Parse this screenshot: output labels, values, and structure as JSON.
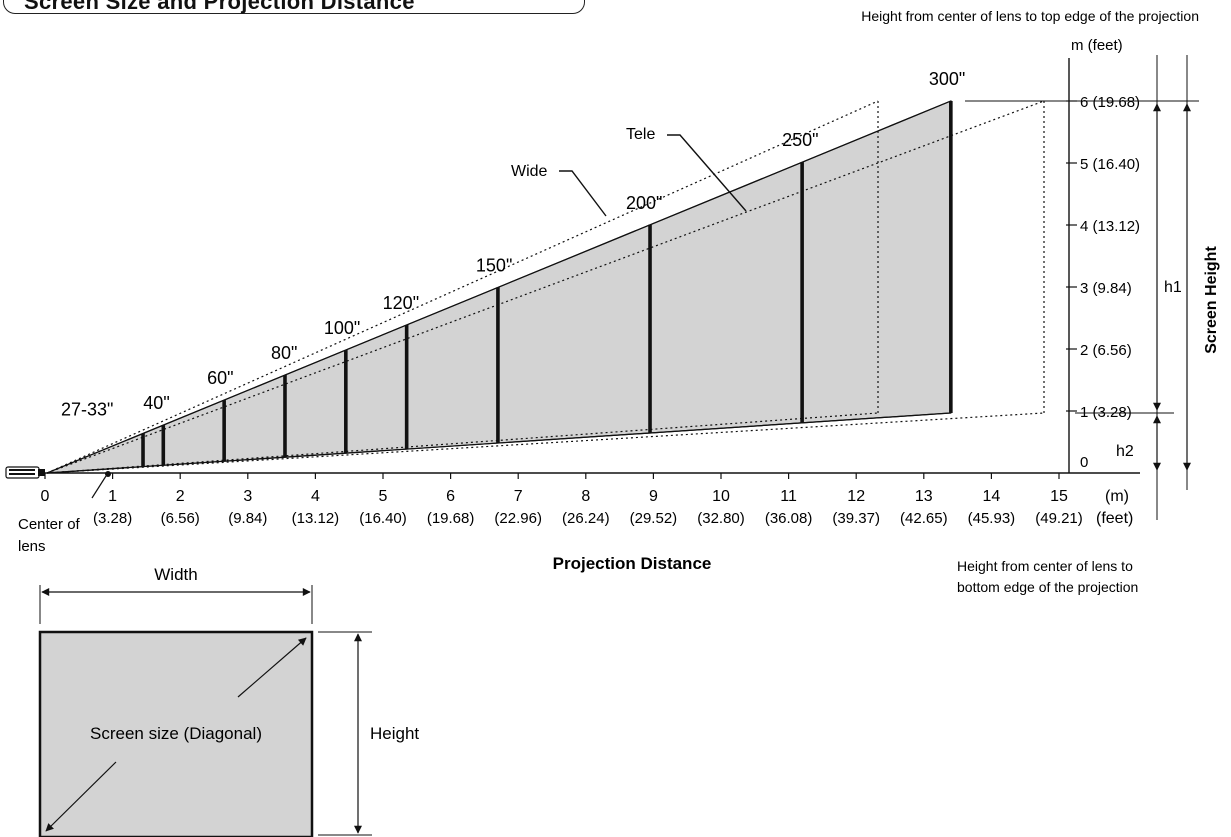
{
  "title": "Screen Size and Projection Distance",
  "top_note": "Height from center of lens to top edge of the projection",
  "bottom_note_lines": [
    "Height from center of lens to",
    "bottom edge of the projection"
  ],
  "x_axis": {
    "title": "Projection Distance",
    "unit_m": "(m)",
    "unit_feet": "(feet)",
    "ticks": [
      {
        "m": "0",
        "ft": ""
      },
      {
        "m": "1",
        "ft": "(3.28)"
      },
      {
        "m": "2",
        "ft": "(6.56)"
      },
      {
        "m": "3",
        "ft": "(9.84)"
      },
      {
        "m": "4",
        "ft": "(13.12)"
      },
      {
        "m": "5",
        "ft": "(16.40)"
      },
      {
        "m": "6",
        "ft": "(19.68)"
      },
      {
        "m": "7",
        "ft": "(22.96)"
      },
      {
        "m": "8",
        "ft": "(26.24)"
      },
      {
        "m": "9",
        "ft": "(29.52)"
      },
      {
        "m": "10",
        "ft": "(32.80)"
      },
      {
        "m": "11",
        "ft": "(36.08)"
      },
      {
        "m": "12",
        "ft": "(39.37)"
      },
      {
        "m": "13",
        "ft": "(42.65)"
      },
      {
        "m": "14",
        "ft": "(45.93)"
      },
      {
        "m": "15",
        "ft": "(49.21)"
      }
    ]
  },
  "y_axis": {
    "unit": "m (feet)",
    "ticks": [
      "0",
      "1 (3.28)",
      "2 (6.56)",
      "3 (9.84)",
      "4 (13.12)",
      "5 (16.40)",
      "6 (19.68)"
    ]
  },
  "screen_sizes": [
    {
      "label": "27-33\"",
      "distance_m": 1.45
    },
    {
      "label": "40\"",
      "distance_m": 1.75
    },
    {
      "label": "60\"",
      "distance_m": 2.65
    },
    {
      "label": "80\"",
      "distance_m": 3.55
    },
    {
      "label": "100\"",
      "distance_m": 4.45
    },
    {
      "label": "120\"",
      "distance_m": 5.35
    },
    {
      "label": "150\"",
      "distance_m": 6.7
    },
    {
      "label": "200\"",
      "distance_m": 8.95
    },
    {
      "label": "250\"",
      "distance_m": 11.2
    },
    {
      "label": "300\"",
      "distance_m": 13.4
    }
  ],
  "labels": {
    "wide": "Wide",
    "tele": "Tele",
    "center_of_lens": [
      "Center of",
      "lens"
    ],
    "h1": "h1",
    "h2": "h2",
    "screen_height": "Screen Height"
  },
  "screen_diagram": {
    "width_label": "Width",
    "height_label": "Height",
    "diagonal_label": "Screen size (Diagonal)"
  },
  "colors": {
    "fill": "#d3d3d3",
    "line": "#111111"
  }
}
